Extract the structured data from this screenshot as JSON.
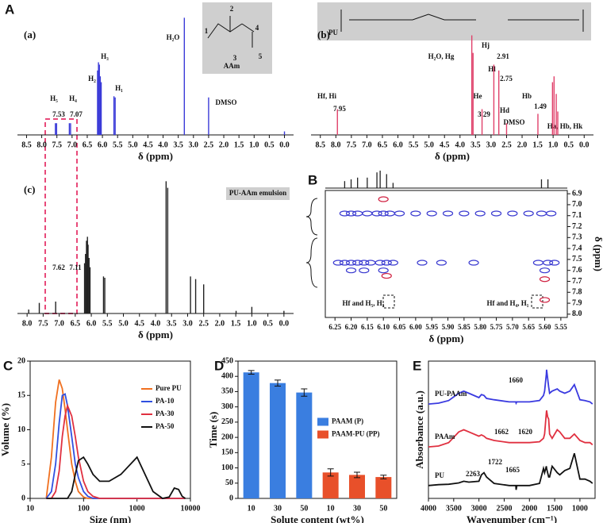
{
  "panel_labels": [
    "A",
    "B",
    "C",
    "D",
    "E"
  ],
  "chart_data": [
    {
      "type": "stick",
      "title": "(a)",
      "xlabel": "δ (ppm)",
      "color": "#3a3ad8",
      "x": [
        7.55,
        7.51,
        7.09,
        7.05,
        6.16,
        6.13,
        6.1,
        6.07,
        6.04,
        5.62,
        5.58,
        3.3,
        2.5,
        0.0
      ],
      "values": [
        0.1,
        0.1,
        0.1,
        0.1,
        0.55,
        0.62,
        0.6,
        0.5,
        0.45,
        0.33,
        0.32,
        1.0,
        0.32,
        0.03
      ],
      "xlim": [
        8.8,
        -0.3
      ],
      "ylim": [
        0,
        1.05
      ],
      "xticks": [
        8.5,
        {
          "value": 8,
          "label": "8.0"
        },
        7.5,
        {
          "value": 7,
          "label": "7.0"
        },
        6.5,
        {
          "value": 6,
          "label": "6.0"
        },
        5.5,
        {
          "value": 5,
          "label": "5.0"
        },
        4.5,
        {
          "value": 4,
          "label": "4.0"
        },
        3.5,
        {
          "value": 3,
          "label": "3.0"
        },
        2.5,
        {
          "value": 2,
          "label": "2.0"
        },
        1.5,
        {
          "value": 1,
          "label": "1.0"
        },
        0.5,
        {
          "value": 0,
          "label": "0.0"
        }
      ],
      "annotations": [
        "H₅",
        "H₄",
        "7.53",
        "7.07",
        "H₂",
        "H₃",
        "H₁",
        "H₂O",
        "DMSO",
        "AAm",
        "1",
        "2",
        "3",
        "4",
        "5"
      ]
    },
    {
      "type": "stick",
      "title": "(b)",
      "xlabel": "δ (ppm)",
      "color": "#e0406a",
      "x": [
        7.95,
        3.62,
        3.58,
        3.29,
        2.91,
        2.75,
        2.5,
        1.49,
        1.02,
        0.97,
        0.9,
        0.85
      ],
      "values": [
        0.22,
        0.85,
        0.7,
        0.22,
        0.6,
        0.55,
        0.1,
        0.18,
        0.45,
        0.5,
        0.35,
        0.2
      ],
      "xlim": [
        8.8,
        -0.3
      ],
      "ylim": [
        0,
        1.05
      ],
      "xticks": [
        8.5,
        {
          "value": 8,
          "label": "8.0"
        },
        7.5,
        {
          "value": 7,
          "label": "7.0"
        },
        6.5,
        {
          "value": 6,
          "label": "6.0"
        },
        5.5,
        {
          "value": 5,
          "label": "5.0"
        },
        4.5,
        {
          "value": 4,
          "label": "4.0"
        },
        3.5,
        {
          "value": 3,
          "label": "3.0"
        },
        2.5,
        {
          "value": 2,
          "label": "2.0"
        },
        1.5,
        {
          "value": 1,
          "label": "1.0"
        },
        0.5,
        {
          "value": 0,
          "label": "0.0"
        }
      ],
      "annotations": [
        "Hf, Hi",
        "7.95",
        "H₂O, Hg",
        "He",
        "3.29",
        "Hj",
        "2.91",
        "Hl",
        "2.75",
        "Hd",
        "DMSO",
        "1.49",
        "Hb",
        "Ha, Hb, Hk",
        "PU"
      ]
    },
    {
      "type": "stick",
      "title": "(c)",
      "xlabel": "δ (ppm)",
      "color": "#222222",
      "x": [
        7.95,
        7.62,
        7.11,
        6.21,
        6.18,
        6.15,
        6.12,
        6.1,
        6.07,
        6.04,
        5.62,
        5.58,
        3.67,
        3.62,
        2.91,
        2.75,
        2.5,
        1.49,
        1.0,
        0.0
      ],
      "values": [
        0.03,
        0.08,
        0.09,
        0.38,
        0.45,
        0.55,
        0.58,
        0.52,
        0.42,
        0.35,
        0.28,
        0.27,
        1.0,
        0.95,
        0.28,
        0.26,
        0.22,
        0.02,
        0.05,
        0.02
      ],
      "xlim": [
        8.3,
        -0.3
      ],
      "ylim": [
        0,
        1.05
      ],
      "xticks": [
        {
          "value": 8,
          "label": "8.0"
        },
        7.5,
        {
          "value": 7,
          "label": "7.0"
        },
        6.5,
        {
          "value": 6,
          "label": "6.0"
        },
        5.5,
        {
          "value": 5,
          "label": "5.0"
        },
        4.5,
        {
          "value": 4,
          "label": "4.0"
        },
        3.5,
        {
          "value": 3,
          "label": "3.0"
        },
        2.5,
        {
          "value": 2,
          "label": "2.0"
        },
        1.5,
        {
          "value": 1,
          "label": "1.0"
        },
        0.5,
        {
          "value": 0,
          "label": "0.0"
        }
      ],
      "annotations": [
        "7.62",
        "7.11",
        "PU-AAm emulsion"
      ]
    },
    {
      "type": "scatter",
      "xlabel": "δ (ppm)",
      "ylabel": "δ (ppm)",
      "box": true,
      "y_axis_side": "right",
      "xlim": [
        6.28,
        5.53
      ],
      "ylim": [
        8.03,
        6.87
      ],
      "xticks": [
        6.25,
        {
          "value": 6.2,
          "label": "6.20"
        },
        6.15,
        {
          "value": 6.1,
          "label": "6.10"
        },
        6.05,
        {
          "value": 6,
          "label": "6.00"
        },
        5.95,
        {
          "value": 5.9,
          "label": "5.90"
        },
        5.85,
        {
          "value": 5.8,
          "label": "5.80"
        },
        5.75,
        {
          "value": 5.7,
          "label": "5.70"
        },
        5.65,
        {
          "value": 5.6,
          "label": "5.60"
        },
        5.55
      ],
      "yticks": [
        6.9,
        {
          "value": 7,
          "label": "7.0"
        },
        7.1,
        7.2,
        7.3,
        7.4,
        7.5,
        7.6,
        7.7,
        7.8,
        7.9,
        {
          "value": 8,
          "label": "8.0"
        }
      ],
      "projection": {
        "color": "#222222",
        "x": [
          6.22,
          6.2,
          6.18,
          6.15,
          6.12,
          6.11,
          6.09,
          6.07,
          5.61,
          5.59
        ],
        "values": [
          0.4,
          0.5,
          0.6,
          0.6,
          0.9,
          1.0,
          0.8,
          0.3,
          0.5,
          0.5
        ]
      },
      "series": [
        {
          "color": "#3a3ad0",
          "x": [
            6.22,
            6.2,
            6.18,
            6.15,
            6.12,
            6.1,
            6.08,
            6.05,
            6.0,
            5.95,
            5.9,
            5.85,
            5.8,
            5.75,
            5.7,
            5.65,
            5.61,
            5.58,
            6.24,
            6.22,
            6.2,
            6.18,
            6.16,
            6.14,
            6.11,
            6.09,
            6.07,
            5.98,
            5.92,
            5.82,
            5.62,
            5.59,
            5.57,
            6.2,
            6.16,
            6.1,
            5.6
          ],
          "y": [
            7.08,
            7.08,
            7.08,
            7.08,
            7.08,
            7.08,
            7.08,
            7.08,
            7.08,
            7.08,
            7.08,
            7.08,
            7.08,
            7.08,
            7.08,
            7.08,
            7.08,
            7.08,
            7.53,
            7.53,
            7.53,
            7.53,
            7.53,
            7.53,
            7.53,
            7.53,
            7.53,
            7.53,
            7.53,
            7.53,
            7.53,
            7.53,
            7.53,
            7.6,
            7.6,
            7.6,
            7.6
          ]
        },
        {
          "color": "#d02040",
          "x": [
            6.1,
            6.09,
            5.6,
            5.6
          ],
          "y": [
            6.95,
            7.65,
            7.68,
            7.87
          ]
        }
      ],
      "annotations": [
        "Hf and H₅, H₃",
        "Hf and H₄, H₁"
      ]
    },
    {
      "type": "line",
      "xlabel": "Size (nm)",
      "ylabel": "Volume (%)",
      "box": true,
      "log_x": true,
      "legend": "upper right",
      "xlim": [
        10,
        10000
      ],
      "ylim": [
        0,
        20
      ],
      "xticks": [
        10,
        100,
        1000,
        10000
      ],
      "yticks": [
        0,
        5,
        10,
        15,
        20
      ],
      "series": [
        {
          "name": "Pure PU",
          "color": "#f07020",
          "x": [
            20,
            25,
            30,
            35,
            40,
            45,
            50,
            60,
            70,
            80,
            100,
            120,
            150,
            200,
            300,
            500,
            1000,
            2000,
            3000,
            4000,
            5000,
            6000,
            7000,
            8000
          ],
          "values": [
            0,
            6,
            14,
            17.3,
            16,
            13,
            10,
            5,
            2.5,
            1,
            0.2,
            0,
            0,
            0,
            0,
            0,
            0,
            0,
            0,
            0,
            0,
            0,
            0,
            0
          ]
        },
        {
          "name": "PA-10",
          "color": "#3050e0",
          "x": [
            20,
            25,
            30,
            35,
            40,
            45,
            50,
            60,
            70,
            80,
            100,
            120,
            150,
            200,
            300,
            500,
            1000,
            2000,
            3000,
            4000,
            5000,
            6000,
            7000,
            8000
          ],
          "values": [
            0,
            1,
            5,
            11,
            15,
            15.2,
            13.5,
            9,
            5,
            3,
            1,
            0.3,
            0,
            0,
            0,
            0,
            0,
            0,
            0,
            0,
            0,
            0,
            0,
            0
          ]
        },
        {
          "name": "PA-30",
          "color": "#e03040",
          "x": [
            20,
            25,
            30,
            35,
            40,
            45,
            50,
            60,
            70,
            80,
            100,
            120,
            150,
            200,
            300,
            500,
            1000,
            2000,
            3000,
            4000,
            5000,
            6000,
            7000,
            8000
          ],
          "values": [
            0,
            0,
            1,
            4,
            9,
            12,
            13.5,
            12,
            9,
            6,
            2.5,
            1,
            0.3,
            0,
            0,
            0,
            0,
            0,
            0,
            0,
            0,
            0,
            0,
            0
          ]
        },
        {
          "name": "PA-50",
          "color": "#111111",
          "x": [
            20,
            25,
            30,
            35,
            40,
            45,
            50,
            60,
            70,
            80,
            100,
            120,
            150,
            200,
            300,
            500,
            1000,
            2000,
            3000,
            4000,
            5000,
            6000,
            7000,
            8000
          ],
          "values": [
            0,
            0,
            0,
            0,
            0,
            0,
            0,
            1,
            3.5,
            5.5,
            6,
            5,
            3.5,
            2.5,
            2.5,
            3.5,
            6,
            1,
            0,
            0.2,
            1.5,
            1.3,
            0.3,
            0
          ]
        }
      ]
    },
    {
      "type": "bar",
      "xlabel": "Solute content (wt%)",
      "ylabel": "Time (s)",
      "box": true,
      "legend": "center right",
      "categories": [
        "10",
        "30",
        "50",
        "10",
        "30",
        "50"
      ],
      "ylim": [
        0,
        450
      ],
      "yticks": [
        0,
        50,
        100,
        150,
        200,
        250,
        300,
        350,
        400,
        450
      ],
      "series": [
        {
          "name": "PAAM (P)",
          "color": "#3a7ee0",
          "values": [
            413,
            378,
            347,
            null,
            null,
            null
          ],
          "errors": [
            6,
            10,
            12,
            null,
            null,
            null
          ]
        },
        {
          "name": "PAAM-PU (PP)",
          "color": "#e8502a",
          "values": [
            null,
            null,
            null,
            85,
            77,
            70
          ],
          "errors": [
            null,
            null,
            null,
            12,
            9,
            6
          ]
        }
      ]
    },
    {
      "type": "line",
      "xlabel": "Wavenumber (cm⁻¹)",
      "ylabel": "Absorbance (a.u.)",
      "box": true,
      "series_labels": true,
      "xlim": [
        4000,
        700
      ],
      "ylim": [
        0,
        3.2
      ],
      "xticks": [
        4000,
        3500,
        3000,
        2500,
        2000,
        1500,
        1000
      ],
      "series": [
        {
          "name": "PU-PAAm",
          "color": "#3a3ae0",
          "x": [
            4000,
            3800,
            3600,
            3400,
            3300,
            3200,
            3000,
            2950,
            2900,
            2850,
            2700,
            2400,
            2270,
            2263,
            2250,
            2000,
            1800,
            1722,
            1700,
            1665,
            1660,
            1640,
            1620,
            1600,
            1550,
            1450,
            1400,
            1300,
            1200,
            1110,
            1000,
            900,
            800,
            750
          ],
          "values": [
            2.2,
            2.22,
            2.28,
            2.45,
            2.5,
            2.45,
            2.35,
            2.42,
            2.4,
            2.33,
            2.3,
            2.25,
            2.25,
            2.22,
            2.25,
            2.25,
            2.28,
            2.4,
            2.5,
            2.9,
            3.0,
            2.8,
            2.6,
            2.45,
            2.5,
            2.55,
            2.5,
            2.45,
            2.5,
            2.65,
            2.3,
            2.28,
            2.25,
            2.2
          ]
        },
        {
          "name": "PAAm",
          "color": "#e03040",
          "x": [
            4000,
            3800,
            3600,
            3400,
            3300,
            3200,
            3000,
            2950,
            2900,
            2850,
            2700,
            2400,
            2270,
            2263,
            2250,
            2000,
            1800,
            1722,
            1700,
            1665,
            1660,
            1640,
            1620,
            1600,
            1550,
            1450,
            1400,
            1300,
            1200,
            1110,
            1000,
            900,
            800,
            750
          ],
          "values": [
            1.2,
            1.22,
            1.3,
            1.55,
            1.6,
            1.55,
            1.45,
            1.48,
            1.45,
            1.4,
            1.35,
            1.3,
            1.3,
            1.3,
            1.3,
            1.3,
            1.32,
            1.4,
            1.5,
            2.0,
            2.05,
            1.9,
            1.85,
            1.5,
            1.4,
            1.6,
            1.55,
            1.4,
            1.4,
            1.5,
            1.35,
            1.3,
            1.3,
            1.25
          ]
        },
        {
          "name": "PU",
          "color": "#111111",
          "x": [
            4000,
            3800,
            3600,
            3400,
            3300,
            3200,
            3000,
            2950,
            2900,
            2850,
            2700,
            2400,
            2270,
            2263,
            2250,
            2000,
            1800,
            1722,
            1700,
            1665,
            1660,
            1640,
            1620,
            1600,
            1550,
            1450,
            1400,
            1300,
            1200,
            1110,
            1000,
            900,
            800,
            750
          ],
          "values": [
            0.3,
            0.32,
            0.33,
            0.36,
            0.4,
            0.38,
            0.4,
            0.55,
            0.6,
            0.5,
            0.35,
            0.3,
            0.3,
            0.2,
            0.3,
            0.3,
            0.35,
            0.7,
            0.6,
            0.75,
            0.7,
            0.6,
            0.5,
            0.5,
            0.75,
            0.6,
            0.55,
            0.65,
            0.7,
            1.05,
            0.45,
            0.45,
            0.4,
            0.35
          ]
        }
      ],
      "annotations": [
        "1660",
        "1662",
        "1620",
        "1722",
        "1665",
        "2263"
      ]
    }
  ]
}
